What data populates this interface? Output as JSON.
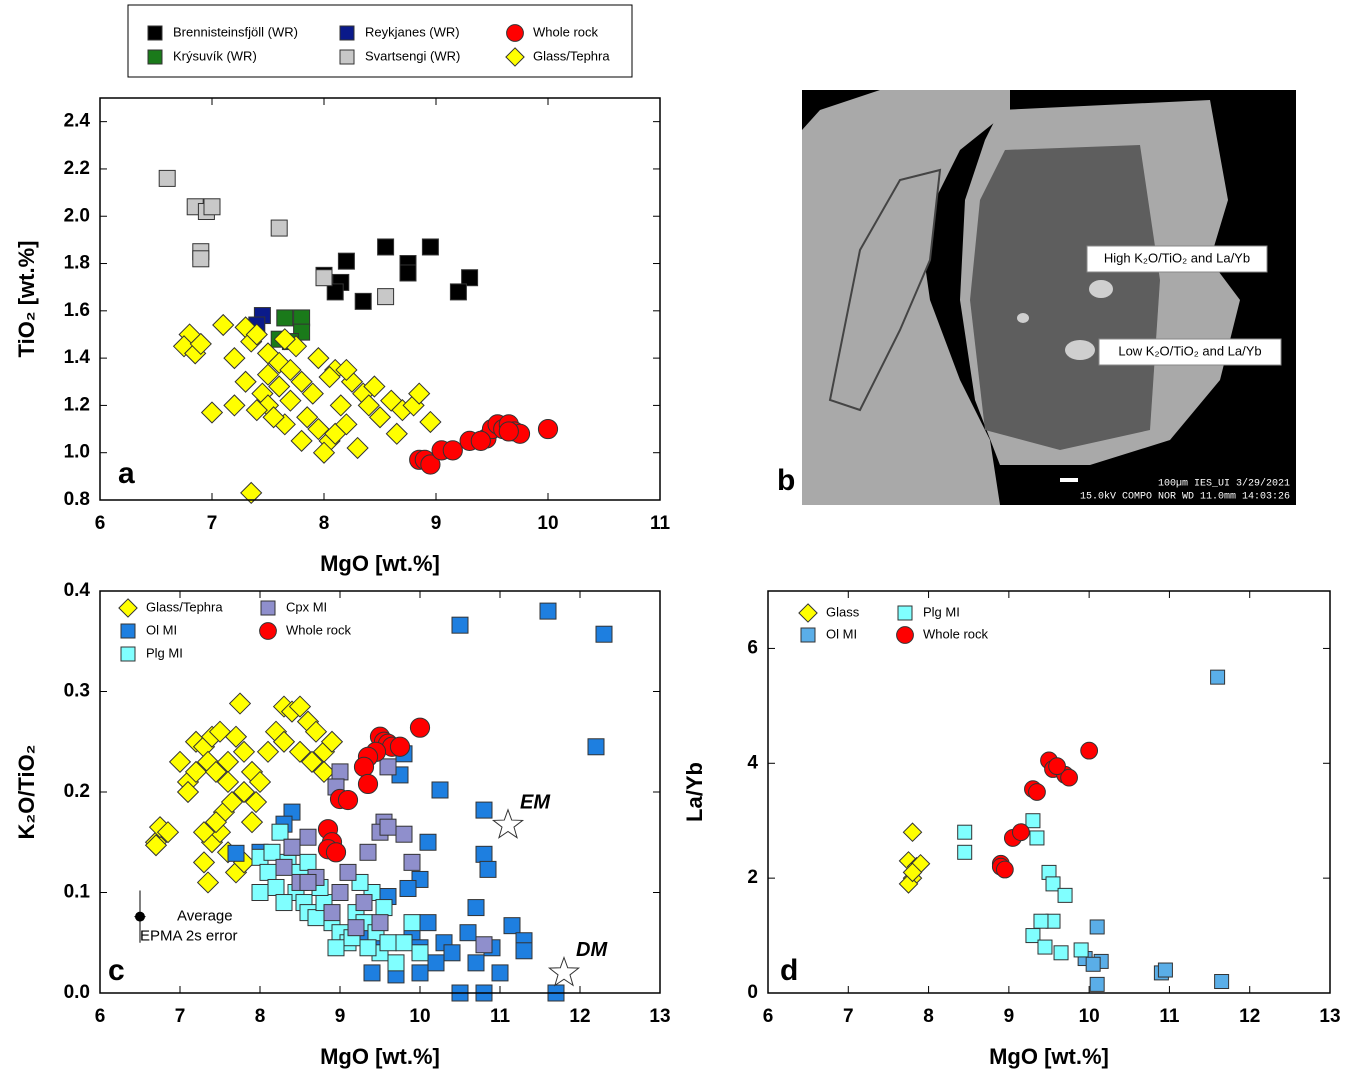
{
  "chart_data": [
    {
      "type": "scatter",
      "panel_label": "a",
      "x_label": "MgO [wt.%]",
      "y_label": "TiO₂ [wt.%]",
      "xlim": [
        6,
        11
      ],
      "ylim": [
        0.8,
        2.5
      ],
      "xticks": [
        6,
        7,
        8,
        9,
        10,
        11
      ],
      "yticks": [
        0.8,
        {
          "value": 1,
          "label": "1.0"
        },
        1.2,
        1.4,
        1.6,
        1.8,
        {
          "value": 2,
          "label": "2.0"
        },
        2.2,
        2.4
      ],
      "legend": "top-outside",
      "series": [
        {
          "name": "Brennisteinsfjöll (WR)",
          "marker": "square",
          "color": "#000000",
          "x": [
            8.55,
            8.95,
            8.2,
            8.75,
            8.75,
            9.3,
            8.0,
            8.15,
            8.1,
            8.35,
            9.2
          ],
          "y": [
            1.87,
            1.87,
            1.81,
            1.8,
            1.76,
            1.74,
            1.75,
            1.72,
            1.68,
            1.64,
            1.68
          ]
        },
        {
          "name": "Krýsuvík (WR)",
          "marker": "square",
          "color": "#1a7a1a",
          "x": [
            7.65,
            7.8,
            7.8,
            7.6,
            7.7
          ],
          "y": [
            1.57,
            1.57,
            1.51,
            1.48,
            1.47
          ]
        },
        {
          "name": "Reykjanes (WR)",
          "marker": "square",
          "color": "#0a1a8a",
          "x": [
            7.45,
            7.4
          ],
          "y": [
            1.58,
            1.54
          ]
        },
        {
          "name": "Svartsengi (WR)",
          "marker": "square",
          "color": "#c8c8c8",
          "x": [
            6.6,
            6.85,
            6.95,
            7.0,
            6.9,
            6.9,
            7.6,
            8.0,
            8.55
          ],
          "y": [
            2.16,
            2.04,
            2.02,
            2.04,
            1.85,
            1.82,
            1.95,
            1.74,
            1.66
          ]
        },
        {
          "name": "Whole rock",
          "marker": "circle",
          "color": "#ff0000",
          "x": [
            8.85,
            8.9,
            8.95,
            9.05,
            9.15,
            9.3,
            9.45,
            9.5,
            9.55,
            9.6,
            9.65,
            9.7,
            9.75,
            10.0,
            9.4,
            9.65
          ],
          "y": [
            0.97,
            0.97,
            0.95,
            1.01,
            1.01,
            1.05,
            1.06,
            1.1,
            1.12,
            1.1,
            1.12,
            1.09,
            1.08,
            1.1,
            1.05,
            1.09
          ]
        },
        {
          "name": "Glass/Tephra",
          "marker": "diamond",
          "color": "#ffff00",
          "x": [
            6.8,
            6.75,
            6.85,
            6.9,
            7.1,
            7.3,
            7.35,
            7.4,
            7.2,
            7.5,
            7.6,
            7.75,
            7.3,
            7.45,
            7.5,
            7.6,
            7.7,
            7.8,
            7.9,
            7.85,
            7.95,
            8.05,
            8.0,
            8.1,
            8.2,
            8.15,
            8.25,
            8.35,
            8.1,
            8.2,
            8.4,
            8.5,
            8.6,
            8.7,
            8.8,
            8.85,
            8.95,
            8.65,
            8.05,
            7.65,
            7.55,
            7.4,
            7.0,
            7.2,
            7.35,
            7.8,
            8.3,
            7.7,
            7.5,
            8.45,
            7.95,
            7.65
          ],
          "y": [
            1.5,
            1.45,
            1.42,
            1.46,
            1.54,
            1.53,
            1.47,
            1.5,
            1.4,
            1.42,
            1.38,
            1.45,
            1.3,
            1.25,
            1.2,
            1.28,
            1.22,
            1.3,
            1.25,
            1.15,
            1.1,
            1.05,
            1.0,
            1.08,
            1.12,
            1.2,
            1.3,
            1.25,
            1.35,
            1.35,
            1.2,
            1.15,
            1.22,
            1.18,
            1.2,
            1.25,
            1.13,
            1.08,
            1.32,
            1.12,
            1.15,
            1.18,
            1.17,
            1.2,
            0.83,
            1.05,
            1.02,
            1.35,
            1.33,
            1.28,
            1.4,
            1.48
          ]
        }
      ]
    },
    {
      "type": "scatter",
      "panel_label": "c",
      "x_label": "MgO [wt.%]",
      "y_label": "K₂O/TiO₂",
      "xlim": [
        6,
        13
      ],
      "ylim": [
        0,
        0.4
      ],
      "xticks": [
        6,
        7,
        8,
        9,
        10,
        11,
        12,
        13
      ],
      "yticks": [
        {
          "value": 0,
          "label": "0.0"
        },
        0.1,
        0.2,
        0.3,
        0.4
      ],
      "legend": "upper-left",
      "series": [
        {
          "name": "Glass/Tephra",
          "marker": "diamond",
          "color": "#ffff00",
          "x": [
            6.7,
            6.75,
            6.85,
            6.7,
            7.0,
            7.1,
            7.2,
            7.3,
            7.4,
            7.5,
            7.7,
            7.75,
            7.1,
            7.2,
            7.35,
            7.45,
            7.6,
            7.8,
            7.9,
            8.0,
            8.1,
            8.2,
            8.3,
            8.4,
            8.5,
            8.6,
            8.7,
            8.8,
            8.9,
            8.3,
            8.5,
            8.65,
            8.8,
            7.3,
            7.35,
            7.4,
            7.5,
            7.6,
            7.7,
            7.8,
            7.9,
            7.55,
            7.65,
            7.8,
            7.95,
            7.45,
            7.3,
            7.6
          ],
          "y": [
            0.15,
            0.165,
            0.16,
            0.147,
            0.23,
            0.21,
            0.25,
            0.245,
            0.255,
            0.26,
            0.255,
            0.288,
            0.2,
            0.22,
            0.23,
            0.22,
            0.23,
            0.24,
            0.22,
            0.21,
            0.24,
            0.26,
            0.285,
            0.28,
            0.285,
            0.27,
            0.26,
            0.24,
            0.25,
            0.25,
            0.24,
            0.23,
            0.22,
            0.13,
            0.11,
            0.15,
            0.16,
            0.14,
            0.12,
            0.13,
            0.17,
            0.18,
            0.19,
            0.2,
            0.19,
            0.17,
            0.16,
            0.21
          ]
        },
        {
          "name": "Ol MI",
          "marker": "square",
          "color": "#1e7fe0",
          "x": [
            10.5,
            11.6,
            12.3,
            12.2,
            10.25,
            9.8,
            9.75,
            10.1,
            10.8,
            10.8,
            10.85,
            10.0,
            9.85,
            9.6,
            10.7,
            11.15,
            11.3,
            11.3,
            8.4,
            8.3,
            7.7,
            8.0,
            9.4,
            9.7,
            10.0,
            10.2,
            10.5,
            10.8,
            11.7,
            10.3,
            10.6,
            10.9,
            10.1,
            9.9,
            10.4,
            11.0,
            10.7,
            9.5,
            9.3,
            10.0
          ],
          "y": [
            0.366,
            0.38,
            0.357,
            0.245,
            0.202,
            0.238,
            0.217,
            0.15,
            0.182,
            0.138,
            0.123,
            0.113,
            0.104,
            0.096,
            0.085,
            0.067,
            0.052,
            0.042,
            0.18,
            0.168,
            0.139,
            0.14,
            0.02,
            0.018,
            0.02,
            0.03,
            0.0,
            0.0,
            0.0,
            0.05,
            0.06,
            0.045,
            0.07,
            0.06,
            0.04,
            0.02,
            0.03,
            0.045,
            0.06,
            0.045
          ]
        },
        {
          "name": "Plg MI",
          "marker": "square",
          "color": "#80ffff",
          "x": [
            8.0,
            8.1,
            8.2,
            8.25,
            8.35,
            8.4,
            8.45,
            8.5,
            8.55,
            8.6,
            8.7,
            8.8,
            8.9,
            9.0,
            9.1,
            9.2,
            9.3,
            9.4,
            9.45,
            9.5,
            9.6,
            9.7,
            9.8,
            9.9,
            10.0,
            8.15,
            8.3,
            8.0,
            8.95,
            9.15,
            9.35,
            8.75,
            9.25,
            9.55,
            8.6
          ],
          "y": [
            0.135,
            0.12,
            0.105,
            0.16,
            0.13,
            0.145,
            0.1,
            0.12,
            0.09,
            0.08,
            0.075,
            0.09,
            0.07,
            0.06,
            0.05,
            0.08,
            0.07,
            0.1,
            0.06,
            0.04,
            0.05,
            0.03,
            0.05,
            0.07,
            0.04,
            0.14,
            0.09,
            0.1,
            0.045,
            0.055,
            0.045,
            0.105,
            0.11,
            0.085,
            0.13
          ]
        },
        {
          "name": "Cpx MI",
          "marker": "square",
          "color": "#8f8fcc",
          "x": [
            9.0,
            9.6,
            8.95,
            9.55,
            9.5,
            9.6,
            9.8,
            9.35,
            9.9,
            8.6,
            8.4,
            8.5,
            9.0,
            9.3,
            9.1,
            8.7,
            8.9,
            10.8,
            9.5,
            9.2,
            8.3,
            8.6
          ],
          "y": [
            0.22,
            0.225,
            0.205,
            0.17,
            0.16,
            0.165,
            0.158,
            0.14,
            0.13,
            0.155,
            0.145,
            0.11,
            0.1,
            0.09,
            0.12,
            0.115,
            0.08,
            0.048,
            0.07,
            0.065,
            0.125,
            0.11
          ]
        },
        {
          "name": "Whole rock",
          "marker": "circle",
          "color": "#ff0000",
          "x": [
            10.0,
            9.5,
            9.55,
            9.6,
            9.65,
            9.75,
            9.45,
            9.35,
            9.3,
            9.35,
            9.0,
            9.1,
            8.85,
            8.9,
            8.85,
            8.95
          ],
          "y": [
            0.264,
            0.255,
            0.25,
            0.248,
            0.245,
            0.245,
            0.24,
            0.235,
            0.225,
            0.208,
            0.193,
            0.192,
            0.163,
            0.15,
            0.143,
            0.14
          ]
        }
      ],
      "annotations": [
        {
          "text": "EM",
          "marker": "star",
          "x": 11.1,
          "y": 0.167
        },
        {
          "text": "DM",
          "marker": "star",
          "x": 11.8,
          "y": 0.02
        }
      ],
      "error_example": {
        "text_lines": [
          "Average",
          "EPMA  2s error"
        ],
        "x": 6.5,
        "y": 0.076,
        "xerr": 0.07,
        "yerr": 0.026
      }
    },
    {
      "type": "scatter",
      "panel_label": "d",
      "x_label": "MgO [wt.%]",
      "y_label": "La/Yb",
      "xlim": [
        6,
        13
      ],
      "ylim": [
        0,
        7
      ],
      "xticks": [
        6,
        7,
        8,
        9,
        10,
        11,
        12,
        13
      ],
      "yticks": [
        0,
        2,
        4,
        6
      ],
      "legend": "upper-left",
      "series": [
        {
          "name": "Glass",
          "marker": "diamond",
          "color": "#ffff00",
          "x": [
            7.8,
            7.75,
            7.8,
            7.85,
            7.75,
            7.9,
            7.8
          ],
          "y": [
            2.8,
            2.3,
            2.0,
            2.2,
            1.9,
            2.25,
            2.1
          ]
        },
        {
          "name": "Ol MI",
          "marker": "square",
          "color": "#5aaee8",
          "x": [
            11.6,
            10.1,
            9.95,
            10.15,
            10.1,
            10.9,
            10.95,
            11.65,
            10.05
          ],
          "y": [
            5.5,
            1.15,
            0.6,
            0.55,
            0.15,
            0.35,
            0.4,
            0.2,
            0.5
          ]
        },
        {
          "name": "Plg MI",
          "marker": "square",
          "color": "#80ffff",
          "x": [
            8.45,
            8.45,
            9.3,
            9.35,
            9.5,
            9.55,
            9.7,
            9.55,
            9.4,
            9.3,
            9.45,
            9.65,
            9.9
          ],
          "y": [
            2.8,
            2.45,
            3.0,
            2.7,
            2.1,
            1.9,
            1.7,
            1.25,
            1.25,
            1.0,
            0.8,
            0.7,
            0.75
          ]
        },
        {
          "name": "Whole rock",
          "marker": "circle",
          "color": "#ff0000",
          "x": [
            8.9,
            8.9,
            8.95,
            9.05,
            9.15,
            9.3,
            9.35,
            9.5,
            9.55,
            9.7,
            9.75,
            9.6,
            10.0
          ],
          "y": [
            2.25,
            2.2,
            2.15,
            2.7,
            2.8,
            3.55,
            3.5,
            4.05,
            3.9,
            3.8,
            3.75,
            3.95,
            4.22
          ]
        }
      ]
    }
  ],
  "image_panel": {
    "panel_label": "b",
    "annotations": [
      "High K₂O/TiO₂ and La/Yb",
      "Low K₂O/TiO₂ and La/Yb"
    ],
    "footer": [
      "100µm IES_UI   3/29/2021",
      "15.0kV COMPO    NOR    WD 11.0mm 14:03:26"
    ]
  }
}
